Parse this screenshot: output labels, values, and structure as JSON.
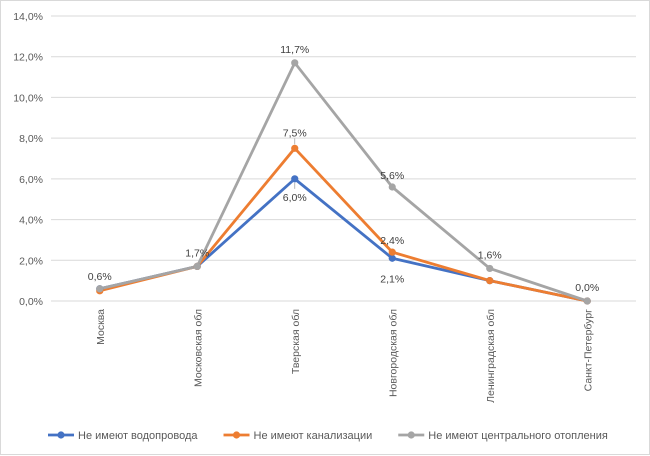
{
  "chart_data": {
    "type": "line",
    "categories": [
      "Москва",
      "Московская обл",
      "Тверская обл",
      "Новгородская обл",
      "Ленинградская обл",
      "Санкт-Петербург"
    ],
    "ylim": [
      0,
      14
    ],
    "yticks": [
      "0,0%",
      "2,0%",
      "4,0%",
      "6,0%",
      "8,0%",
      "10,0%",
      "12,0%",
      "14,0%"
    ],
    "grid": true,
    "legend_position": "bottom",
    "series": [
      {
        "name": "Не имеют водопровода",
        "color": "#4472c4",
        "values": [
          0.6,
          1.7,
          6.0,
          2.1,
          1.0,
          0.0
        ],
        "labels": [
          "",
          "",
          "6,0%",
          "2,1%",
          "",
          ""
        ]
      },
      {
        "name": "Не имеют канализации",
        "color": "#ed7d31",
        "values": [
          0.5,
          1.7,
          7.5,
          2.4,
          1.0,
          0.0
        ],
        "labels": [
          "",
          "",
          "7,5%",
          "2,4%",
          "",
          ""
        ]
      },
      {
        "name": "Не имеют центрального отопления",
        "color": "#a5a5a5",
        "values": [
          0.6,
          1.7,
          11.7,
          5.6,
          1.6,
          0.0
        ],
        "labels": [
          "0,6%",
          "1,7%",
          "11,7%",
          "5,6%",
          "1,6%",
          "0,0%"
        ]
      }
    ]
  }
}
